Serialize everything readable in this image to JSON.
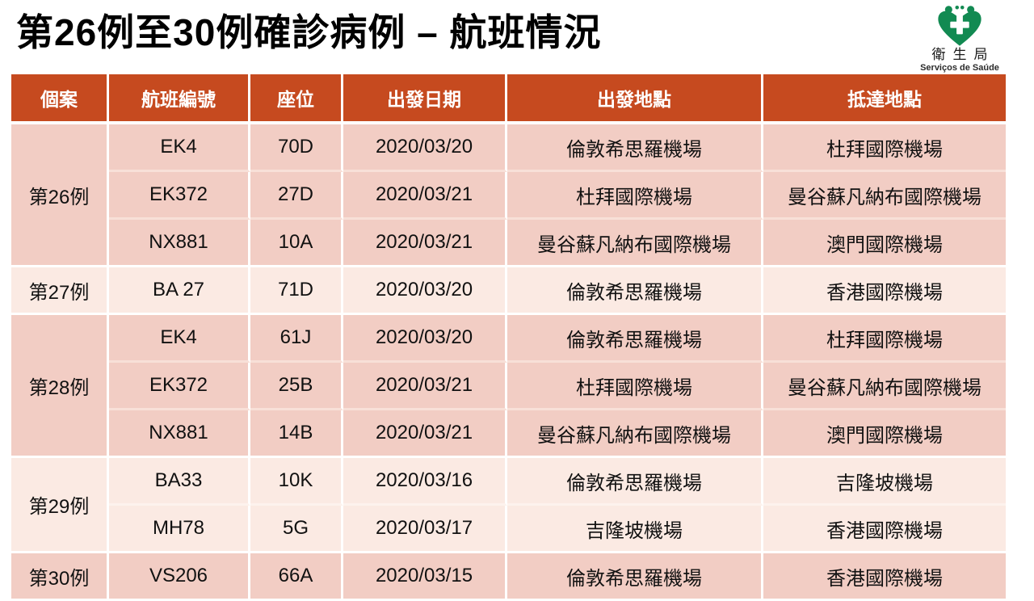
{
  "title": "第26例至30例確診病例 – 航班情況",
  "logo": {
    "org_zh": "衛生局",
    "org_pt": "Serviços de Saúde"
  },
  "table": {
    "headers": [
      "個案",
      "航班編號",
      "座位",
      "出發日期",
      "出發地點",
      "抵達地點"
    ],
    "groups": [
      {
        "case": "第26例",
        "shade": "dark",
        "flights": [
          {
            "flight": "EK4",
            "seat": "70D",
            "date": "2020/03/20",
            "from": "倫敦希思羅機場",
            "to": "杜拜國際機場"
          },
          {
            "flight": "EK372",
            "seat": "27D",
            "date": "2020/03/21",
            "from": "杜拜國際機場",
            "to": "曼谷蘇凡納布國際機場"
          },
          {
            "flight": "NX881",
            "seat": "10A",
            "date": "2020/03/21",
            "from": "曼谷蘇凡納布國際機場",
            "to": "澳門國際機場"
          }
        ]
      },
      {
        "case": "第27例",
        "shade": "light",
        "flights": [
          {
            "flight": "BA 27",
            "seat": "71D",
            "date": "2020/03/20",
            "from": "倫敦希思羅機場",
            "to": "香港國際機場"
          }
        ]
      },
      {
        "case": "第28例",
        "shade": "dark",
        "flights": [
          {
            "flight": "EK4",
            "seat": "61J",
            "date": "2020/03/20",
            "from": "倫敦希思羅機場",
            "to": "杜拜國際機場"
          },
          {
            "flight": "EK372",
            "seat": "25B",
            "date": "2020/03/21",
            "from": "杜拜國際機場",
            "to": "曼谷蘇凡納布國際機場"
          },
          {
            "flight": "NX881",
            "seat": "14B",
            "date": "2020/03/21",
            "from": "曼谷蘇凡納布國際機場",
            "to": "澳門國際機場"
          }
        ]
      },
      {
        "case": "第29例",
        "shade": "light",
        "flights": [
          {
            "flight": "BA33",
            "seat": "10K",
            "date": "2020/03/16",
            "from": "倫敦希思羅機場",
            "to": "吉隆坡機場"
          },
          {
            "flight": "MH78",
            "seat": "5G",
            "date": "2020/03/17",
            "from": "吉隆坡機場",
            "to": "香港國際機場"
          }
        ]
      },
      {
        "case": "第30例",
        "shade": "dark",
        "flights": [
          {
            "flight": "VS206",
            "seat": "66A",
            "date": "2020/03/15",
            "from": "倫敦希思羅機場",
            "to": "香港國際機場"
          }
        ]
      }
    ]
  },
  "colors": {
    "header_bg": "#C64A1F",
    "header_text": "#FFFFFF",
    "row_dark": "#F2CDC4",
    "row_light": "#FBEAE3",
    "logo_green": "#128A52"
  }
}
